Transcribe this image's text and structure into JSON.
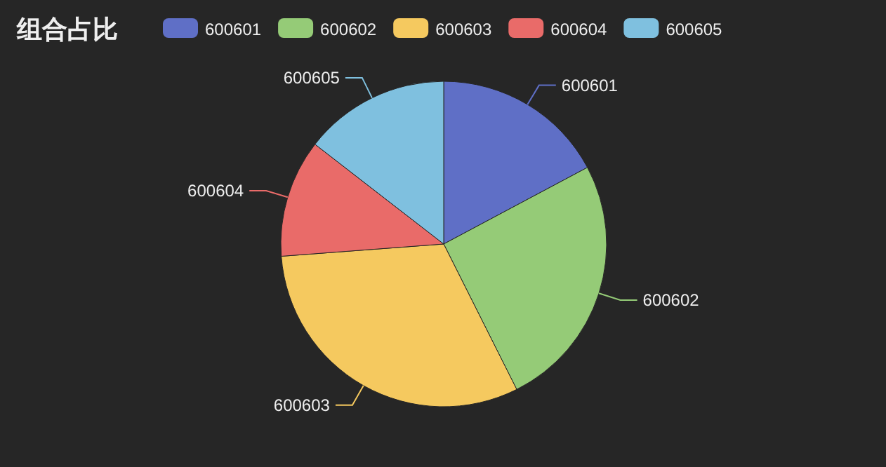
{
  "chart_data": {
    "type": "pie",
    "title": "组合占比",
    "categories": [
      "600601",
      "600602",
      "600603",
      "600604",
      "600605"
    ],
    "values": [
      17.2,
      25.4,
      31.2,
      11.7,
      14.5
    ],
    "colors": [
      "#5f6fc6",
      "#95cb77",
      "#f5c95f",
      "#e96b69",
      "#7fc0df"
    ],
    "legend": "top"
  }
}
